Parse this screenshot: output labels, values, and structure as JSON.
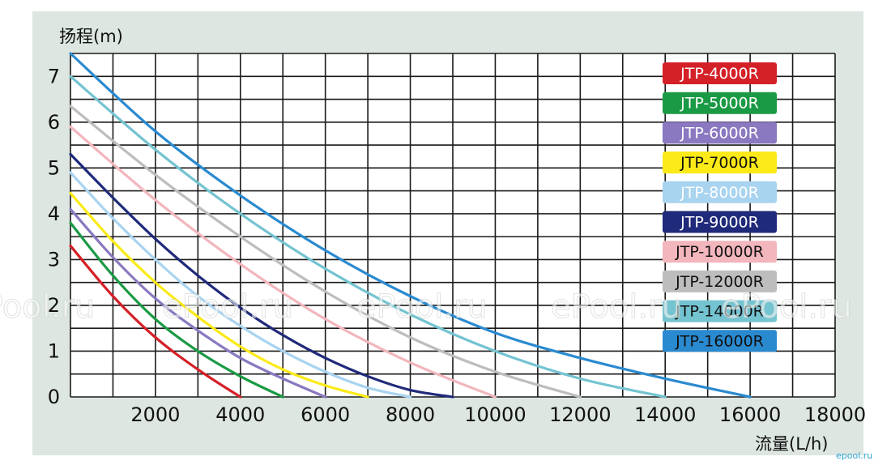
{
  "chart_data": {
    "type": "line",
    "xlabel": "流量(L/h)",
    "ylabel": "扬程(m)",
    "xlim": [
      0,
      18000
    ],
    "ylim": [
      0,
      7.5
    ],
    "x_ticks": [
      "2000",
      "4000",
      "6000",
      "8000",
      "10000",
      "12000",
      "14000",
      "16000",
      "18000"
    ],
    "y_ticks": [
      "0",
      "1",
      "2",
      "3",
      "4",
      "5",
      "6",
      "7"
    ],
    "grid": true,
    "legend_position": "top-right",
    "series": [
      {
        "name": "JTP-4000R",
        "color": "#d42027",
        "text_color": "#ffffff",
        "x": [
          0,
          1000,
          2000,
          3000,
          4000
        ],
        "y": [
          3.3,
          2.2,
          1.3,
          0.6,
          0
        ]
      },
      {
        "name": "JTP-5000R",
        "color": "#1a9a44",
        "text_color": "#ffffff",
        "x": [
          0,
          1000,
          2000,
          3000,
          4000,
          5000
        ],
        "y": [
          3.8,
          2.65,
          1.7,
          1.0,
          0.45,
          0
        ]
      },
      {
        "name": "JTP-6000R",
        "color": "#8a79c0",
        "text_color": "#ffffff",
        "x": [
          0,
          1000,
          2000,
          3000,
          4000,
          5000,
          6000
        ],
        "y": [
          4.1,
          3.05,
          2.15,
          1.45,
          0.85,
          0.4,
          0
        ]
      },
      {
        "name": "JTP-7000R",
        "color": "#fbea17",
        "text_color": "#111111",
        "x": [
          0,
          1000,
          2000,
          3000,
          4000,
          5000,
          6000,
          7000
        ],
        "y": [
          4.45,
          3.4,
          2.5,
          1.75,
          1.1,
          0.6,
          0.25,
          0
        ]
      },
      {
        "name": "JTP-8000R",
        "color": "#a9d4f0",
        "text_color": "#ffffff",
        "x": [
          0,
          1000,
          2000,
          3000,
          4000,
          5000,
          6000,
          7000,
          8000
        ],
        "y": [
          4.9,
          3.9,
          3.0,
          2.2,
          1.55,
          1.0,
          0.55,
          0.2,
          0
        ]
      },
      {
        "name": "JTP-9000R",
        "color": "#202a7a",
        "text_color": "#ffffff",
        "x": [
          0,
          1000,
          2000,
          3000,
          4000,
          5000,
          6000,
          7000,
          8000,
          9000
        ],
        "y": [
          5.3,
          4.35,
          3.45,
          2.65,
          1.95,
          1.35,
          0.85,
          0.45,
          0.15,
          0
        ]
      },
      {
        "name": "JTP-10000R",
        "color": "#f2b6bc",
        "text_color": "#111111",
        "x": [
          0,
          2000,
          4000,
          6000,
          8000,
          10000
        ],
        "y": [
          5.9,
          4.3,
          2.9,
          1.7,
          0.75,
          0
        ]
      },
      {
        "name": "JTP-12000R",
        "color": "#bdbdbd",
        "text_color": "#111111",
        "x": [
          0,
          2000,
          4000,
          6000,
          8000,
          10000,
          12000
        ],
        "y": [
          6.35,
          4.85,
          3.5,
          2.3,
          1.3,
          0.55,
          0
        ]
      },
      {
        "name": "JTP-14000R",
        "color": "#74c3d1",
        "text_color": "#111111",
        "x": [
          0,
          2000,
          4000,
          6000,
          8000,
          10000,
          12000,
          14000
        ],
        "y": [
          7.0,
          5.4,
          4.0,
          2.8,
          1.8,
          1.0,
          0.4,
          0
        ]
      },
      {
        "name": "JTP-16000R",
        "color": "#2a8ad0",
        "text_color": "#111111",
        "x": [
          0,
          2000,
          4000,
          6000,
          8000,
          10000,
          12000,
          14000,
          16000
        ],
        "y": [
          7.5,
          5.8,
          4.4,
          3.2,
          2.2,
          1.4,
          0.85,
          0.4,
          0
        ]
      }
    ]
  },
  "watermark": [
    "Pool.ru",
    "ePool.ru",
    "ePool.ru",
    "ePool.ru",
    "ePool.ru"
  ],
  "corner_mark": "epool.ru"
}
